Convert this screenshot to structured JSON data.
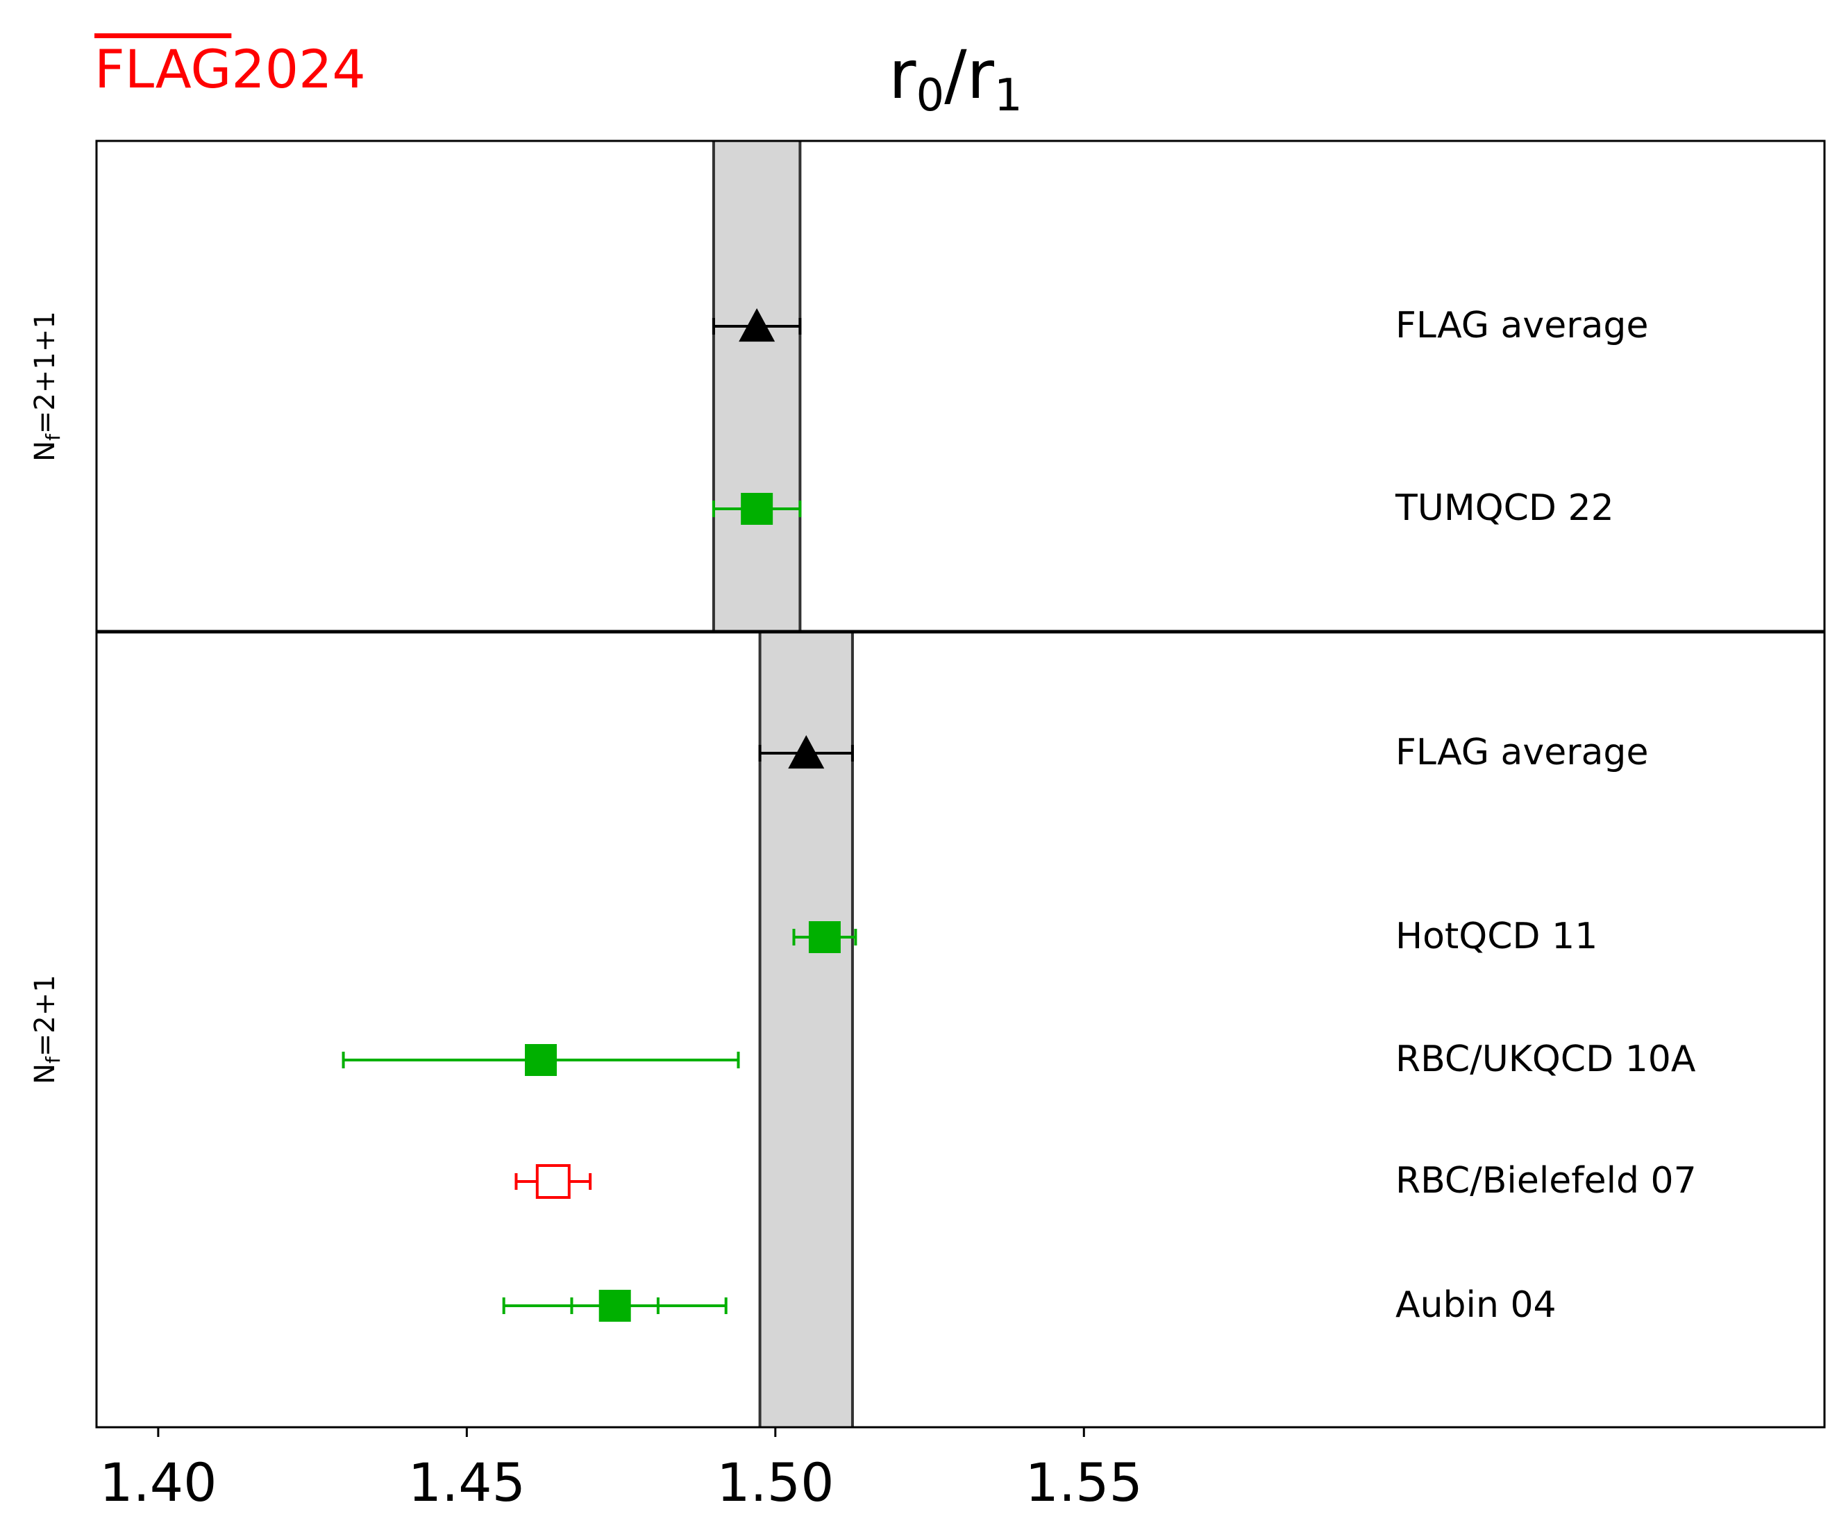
{
  "logo": {
    "text_over": "FLAG",
    "text_year": "2024"
  },
  "title": {
    "main": "r",
    "sub0": "0",
    "slash": "/",
    "main2": "r",
    "sub1": "1"
  },
  "chart_data": {
    "type": "scatter",
    "xlim": [
      1.39,
      1.67
    ],
    "xticks": [
      1.4,
      1.45,
      1.5,
      1.55
    ],
    "xtick_labels": [
      "1.40",
      "1.45",
      "1.50",
      "1.55"
    ],
    "grid": false,
    "panels": [
      {
        "label": "N_f=2+1+1",
        "label_text": "Nf = 2+1+1",
        "band": [
          1.49,
          1.504
        ],
        "rows": [
          {
            "name": "FLAG average",
            "value": 1.497,
            "err": [
              1.49,
              1.504
            ],
            "marker": "triangle",
            "color": "#000000",
            "filled": true,
            "inner_err": null
          },
          {
            "name": "TUMQCD 22",
            "value": 1.497,
            "err": [
              1.49,
              1.504
            ],
            "marker": "square",
            "color": "#00b000",
            "filled": true,
            "inner_err": null
          }
        ]
      },
      {
        "label": "N_f=2+1",
        "label_text": "Nf = 2+1",
        "band": [
          1.4975,
          1.5125
        ],
        "rows": [
          {
            "name": "FLAG average",
            "value": 1.505,
            "err": [
              1.4975,
              1.5125
            ],
            "marker": "triangle",
            "color": "#000000",
            "filled": true,
            "inner_err": null
          },
          {
            "name": "HotQCD 11",
            "value": 1.508,
            "err": [
              1.503,
              1.513
            ],
            "marker": "square",
            "color": "#00b000",
            "filled": true,
            "inner_err": null
          },
          {
            "name": "RBC/UKQCD 10A",
            "value": 1.462,
            "err": [
              1.43,
              1.494
            ],
            "marker": "square",
            "color": "#00b000",
            "filled": true,
            "inner_err": null
          },
          {
            "name": "RBC/Bielefeld 07",
            "value": 1.464,
            "err": [
              1.458,
              1.47
            ],
            "marker": "square",
            "color": "#ff0000",
            "filled": false,
            "inner_err": null
          },
          {
            "name": "Aubin 04",
            "value": 1.474,
            "err": [
              1.456,
              1.492
            ],
            "marker": "square",
            "color": "#00b000",
            "filled": true,
            "inner_err": [
              1.467,
              1.481
            ]
          }
        ]
      }
    ]
  }
}
